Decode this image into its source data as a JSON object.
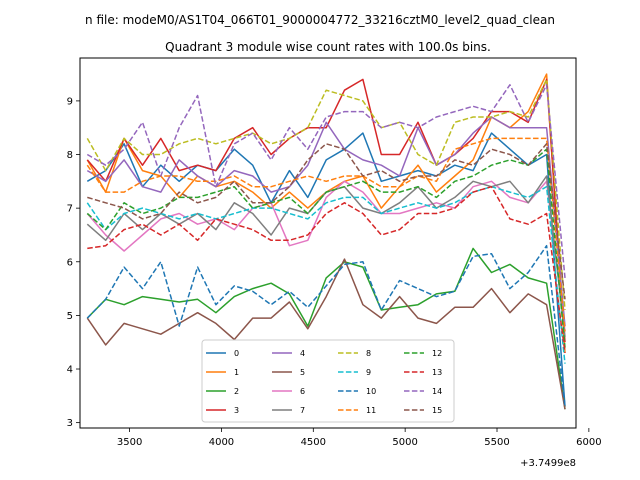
{
  "chart_data": {
    "type": "line",
    "suptitle": "n file: modeM0/AS1T04_066T01_9000004772_33216cztM0_level2_quad_clean",
    "title": "Quadrant 3 module wise count rates with 100.0s bins.",
    "xlabel": "",
    "ylabel": "",
    "x_offset_label": "+3.7499e8",
    "xlim": [
      3230,
      5930
    ],
    "ylim": [
      2.9,
      9.8
    ],
    "x_ticks": [
      3500,
      4000,
      4500,
      5000,
      5500,
      6000
    ],
    "y_ticks": [
      3,
      4,
      5,
      6,
      7,
      8,
      9
    ],
    "grid": false,
    "legend_position": "lower center",
    "x": [
      3270,
      3370,
      3470,
      3570,
      3670,
      3770,
      3870,
      3970,
      4070,
      4170,
      4270,
      4370,
      4470,
      4570,
      4670,
      4770,
      4870,
      4970,
      5070,
      5170,
      5270,
      5370,
      5470,
      5570,
      5670,
      5770,
      5870
    ],
    "series": [
      {
        "name": "0",
        "color": "#1f77b4",
        "style": "solid",
        "values": [
          7.5,
          7.7,
          8.2,
          7.4,
          7.8,
          7.5,
          7.8,
          7.7,
          8.1,
          7.8,
          7.1,
          7.7,
          7.2,
          7.9,
          8.1,
          8.4,
          7.5,
          7.6,
          7.7,
          7.6,
          7.8,
          7.7,
          8.4,
          8.1,
          7.8,
          8.0,
          3.3
        ]
      },
      {
        "name": "1",
        "color": "#ff7f0e",
        "style": "solid",
        "values": [
          7.9,
          7.3,
          8.3,
          7.7,
          7.6,
          7.2,
          7.6,
          7.4,
          7.5,
          7.3,
          7.0,
          7.3,
          7.0,
          7.3,
          7.5,
          7.6,
          7.0,
          7.4,
          7.8,
          7.3,
          7.6,
          7.9,
          8.7,
          8.5,
          8.8,
          9.5,
          4.3
        ]
      },
      {
        "name": "2",
        "color": "#2ca02c",
        "style": "solid",
        "values": [
          4.95,
          5.3,
          5.2,
          5.35,
          5.3,
          5.25,
          5.3,
          5.05,
          5.35,
          5.5,
          5.6,
          5.4,
          4.8,
          5.7,
          6.0,
          5.9,
          5.1,
          5.15,
          5.2,
          5.4,
          5.45,
          6.25,
          5.8,
          5.95,
          5.7,
          5.6,
          3.25
        ]
      },
      {
        "name": "3",
        "color": "#d62728",
        "style": "solid",
        "values": [
          7.9,
          7.5,
          8.3,
          7.8,
          8.3,
          7.7,
          7.8,
          7.7,
          8.3,
          8.5,
          8.0,
          8.3,
          8.5,
          8.5,
          9.2,
          9.4,
          8.0,
          8.0,
          8.6,
          7.8,
          8.0,
          8.3,
          8.8,
          8.8,
          8.6,
          9.4,
          4.5
        ]
      },
      {
        "name": "4",
        "color": "#9467bd",
        "style": "solid",
        "values": [
          7.7,
          7.5,
          7.9,
          7.4,
          7.3,
          7.9,
          7.6,
          7.4,
          7.7,
          7.6,
          7.3,
          7.4,
          7.8,
          8.6,
          8.1,
          7.9,
          7.8,
          7.6,
          8.5,
          7.8,
          8.0,
          8.4,
          8.7,
          8.5,
          8.5,
          8.5,
          4.8
        ]
      },
      {
        "name": "5",
        "color": "#8c564b",
        "style": "solid",
        "values": [
          4.95,
          4.45,
          4.85,
          4.75,
          4.65,
          4.85,
          5.05,
          4.85,
          4.55,
          4.95,
          4.95,
          5.25,
          4.75,
          5.35,
          6.05,
          5.2,
          4.95,
          5.35,
          4.95,
          4.85,
          5.15,
          5.15,
          5.5,
          5.05,
          5.4,
          5.2,
          3.25
        ]
      },
      {
        "name": "6",
        "color": "#e377c2",
        "style": "solid",
        "values": [
          6.9,
          6.5,
          6.2,
          6.5,
          6.8,
          6.9,
          6.7,
          6.8,
          6.6,
          7.0,
          7.1,
          6.3,
          6.4,
          7.2,
          7.5,
          7.3,
          6.9,
          6.9,
          7.0,
          7.1,
          7.0,
          7.4,
          7.5,
          7.2,
          7.1,
          7.5,
          4.7
        ]
      },
      {
        "name": "7",
        "color": "#7f7f7f",
        "style": "solid",
        "values": [
          6.7,
          6.4,
          6.9,
          6.6,
          6.9,
          6.7,
          6.9,
          6.6,
          7.1,
          6.9,
          6.5,
          7.0,
          6.9,
          7.3,
          7.4,
          7.0,
          6.9,
          7.1,
          7.4,
          7.0,
          7.2,
          7.5,
          7.4,
          7.5,
          7.1,
          7.6,
          4.6
        ]
      },
      {
        "name": "8",
        "color": "#bcbd22",
        "style": "dashed",
        "values": [
          8.3,
          7.7,
          8.3,
          8.0,
          8.0,
          8.2,
          8.3,
          8.2,
          8.3,
          8.4,
          8.2,
          8.3,
          8.5,
          9.2,
          9.1,
          9.0,
          8.5,
          8.6,
          8.0,
          7.8,
          8.6,
          8.7,
          8.7,
          8.8,
          8.7,
          9.4,
          5.1
        ]
      },
      {
        "name": "9",
        "color": "#17becf",
        "style": "dashed",
        "values": [
          7.1,
          6.6,
          6.9,
          7.0,
          6.9,
          6.8,
          6.9,
          6.8,
          6.9,
          7.0,
          7.0,
          6.9,
          6.8,
          7.1,
          7.2,
          7.2,
          6.9,
          7.0,
          7.1,
          7.0,
          7.1,
          7.3,
          7.4,
          7.3,
          7.2,
          7.4,
          4.1
        ]
      },
      {
        "name": "10",
        "color": "#1f77b4",
        "style": "dashed",
        "values": [
          4.95,
          5.3,
          5.9,
          5.5,
          6.0,
          4.8,
          5.9,
          5.2,
          5.55,
          5.45,
          5.2,
          5.45,
          5.15,
          5.55,
          5.95,
          6.0,
          5.1,
          5.65,
          5.5,
          5.35,
          5.45,
          6.1,
          6.15,
          5.5,
          5.8,
          6.3,
          3.3
        ]
      },
      {
        "name": "11",
        "color": "#ff7f0e",
        "style": "dashed",
        "values": [
          7.8,
          7.3,
          7.3,
          7.5,
          7.6,
          7.6,
          7.5,
          7.5,
          7.6,
          7.4,
          7.4,
          7.5,
          7.6,
          7.5,
          7.6,
          7.6,
          7.4,
          7.4,
          7.6,
          7.5,
          8.1,
          8.2,
          8.3,
          8.3,
          8.3,
          8.3,
          4.7
        ]
      },
      {
        "name": "12",
        "color": "#2ca02c",
        "style": "dashed",
        "values": [
          6.9,
          6.6,
          7.1,
          6.9,
          7.0,
          7.2,
          7.2,
          7.3,
          7.4,
          7.0,
          7.1,
          7.2,
          6.9,
          7.3,
          7.4,
          7.5,
          7.3,
          7.3,
          7.4,
          7.2,
          7.5,
          7.6,
          7.8,
          7.9,
          7.8,
          8.1,
          4.4
        ]
      },
      {
        "name": "13",
        "color": "#d62728",
        "style": "dashed",
        "values": [
          6.25,
          6.3,
          6.6,
          6.7,
          6.5,
          6.7,
          6.4,
          6.8,
          6.7,
          6.6,
          6.4,
          6.4,
          6.5,
          6.9,
          7.1,
          6.9,
          6.5,
          6.6,
          6.9,
          6.9,
          7.0,
          7.3,
          7.4,
          6.8,
          6.7,
          6.9,
          4.3
        ]
      },
      {
        "name": "14",
        "color": "#9467bd",
        "style": "dashed",
        "values": [
          8.0,
          7.8,
          8.1,
          8.6,
          7.6,
          8.5,
          9.1,
          7.4,
          8.2,
          8.4,
          7.9,
          8.5,
          8.1,
          8.7,
          8.8,
          8.8,
          8.5,
          8.6,
          8.5,
          8.7,
          8.8,
          8.9,
          8.8,
          9.3,
          8.6,
          9.3,
          5.7
        ]
      },
      {
        "name": "15",
        "color": "#8c564b",
        "style": "dashed",
        "values": [
          7.2,
          7.1,
          7.0,
          6.8,
          6.9,
          7.3,
          7.1,
          7.2,
          7.5,
          7.1,
          7.1,
          7.4,
          7.9,
          8.2,
          8.1,
          7.6,
          7.7,
          7.5,
          7.6,
          7.6,
          7.9,
          7.8,
          8.1,
          8.0,
          7.8,
          8.2,
          5.3
        ]
      }
    ]
  }
}
